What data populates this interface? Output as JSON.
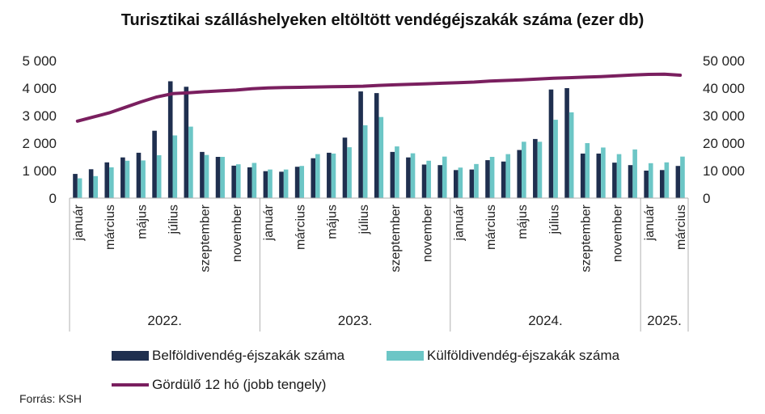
{
  "colors": {
    "domestic": "#1f2f4f",
    "foreign": "#6cc6c6",
    "rolling": "#7a1f5f",
    "axis": "#b0b0b0"
  },
  "chart_data": {
    "type": "bar",
    "title": "Turisztikai szálláshelyeken eltöltött vendégéjszakák száma (ezer db)",
    "years": [
      {
        "label": "2022.",
        "count": 12
      },
      {
        "label": "2023.",
        "count": 12
      },
      {
        "label": "2024.",
        "count": 12
      },
      {
        "label": "2025.",
        "count": 3
      }
    ],
    "categories": [
      "január",
      "",
      "március",
      "",
      "május",
      "",
      "július",
      "",
      "szeptember",
      "",
      "november",
      "",
      "január",
      "",
      "március",
      "",
      "május",
      "",
      "július",
      "",
      "szeptember",
      "",
      "november",
      "",
      "január",
      "",
      "március",
      "",
      "május",
      "",
      "július",
      "",
      "szeptember",
      "",
      "november",
      "",
      "január",
      "",
      "március"
    ],
    "left_axis": {
      "ylim": [
        0,
        5000
      ],
      "ticks": [
        "0",
        "1 000",
        "2 000",
        "3 000",
        "4 000",
        "5 000"
      ]
    },
    "right_axis": {
      "ylim": [
        0,
        50000
      ],
      "ticks": [
        "0",
        "10 000",
        "20 000",
        "30 000",
        "40 000",
        "50 000"
      ]
    },
    "series": [
      {
        "name": "Belföldivendég-éjszakák száma",
        "axis": "left",
        "values": [
          880,
          1050,
          1300,
          1480,
          1650,
          2450,
          4250,
          4050,
          1680,
          1500,
          1180,
          1120,
          980,
          960,
          1140,
          1450,
          1650,
          2200,
          3880,
          3820,
          1680,
          1480,
          1220,
          1200,
          1020,
          1040,
          1380,
          1330,
          1750,
          2150,
          3950,
          4000,
          1620,
          1620,
          1290,
          1200,
          1000,
          1020,
          1170
        ]
      },
      {
        "name": "Külföldivendég-éjszakák száma",
        "axis": "left",
        "values": [
          720,
          800,
          1120,
          1360,
          1370,
          1560,
          2280,
          2600,
          1570,
          1500,
          1230,
          1280,
          1040,
          1040,
          1170,
          1600,
          1620,
          1850,
          2650,
          2950,
          1880,
          1630,
          1360,
          1510,
          1110,
          1240,
          1500,
          1600,
          2050,
          2050,
          2850,
          3120,
          2000,
          1840,
          1600,
          1770,
          1270,
          1300,
          1510
        ]
      },
      {
        "name": "Gördülő 12 hó (jobb tengely)",
        "axis": "right",
        "type": "line",
        "values": [
          28000,
          29500,
          31000,
          33000,
          35000,
          36800,
          38000,
          38300,
          38700,
          39000,
          39300,
          39800,
          40100,
          40200,
          40300,
          40400,
          40500,
          40600,
          40700,
          41000,
          41200,
          41400,
          41600,
          41800,
          42000,
          42200,
          42600,
          42800,
          43000,
          43300,
          43600,
          43800,
          44000,
          44200,
          44500,
          44800,
          45000,
          45100,
          44700
        ]
      }
    ]
  },
  "legend": {
    "domestic": "Belföldivendég-éjszakák száma",
    "foreign": "Külföldivendég-éjszakák száma",
    "rolling": "Gördülő 12 hó (jobb tengely)"
  },
  "source": "Forrás: KSH"
}
